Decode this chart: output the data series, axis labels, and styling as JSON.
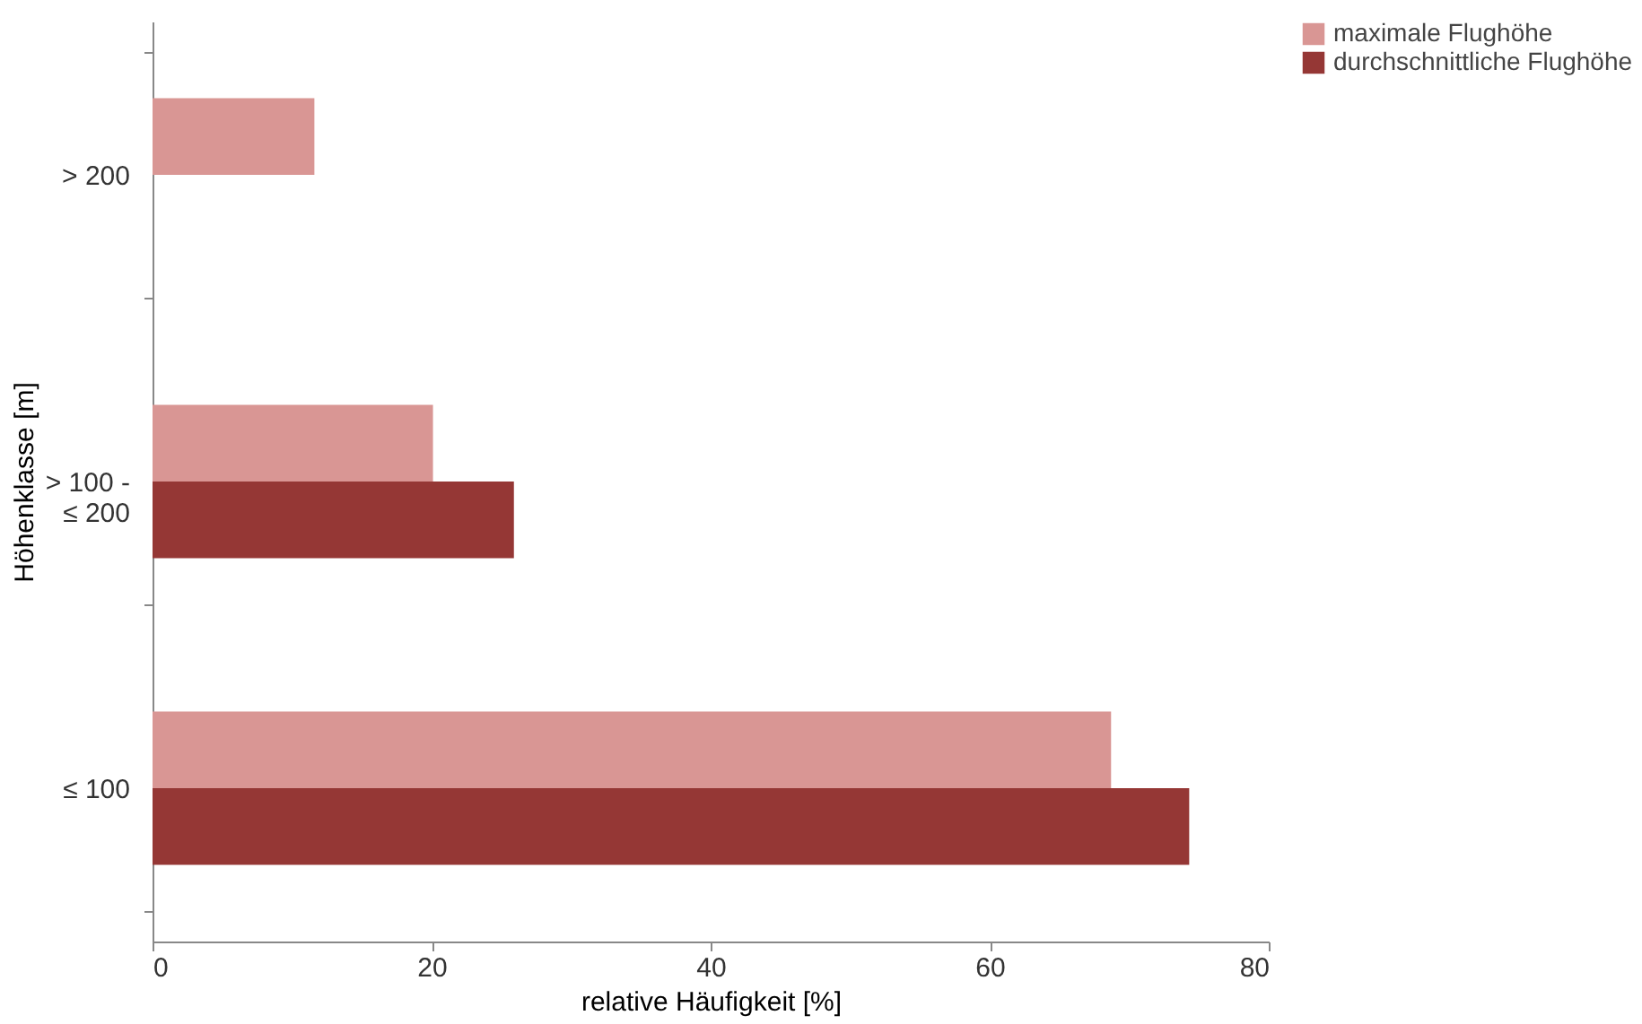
{
  "chart_data": {
    "type": "bar",
    "orientation": "horizontal",
    "xlabel": "relative Häufigkeit [%]",
    "ylabel": "Höhenklasse [m]",
    "categories": [
      "> 200",
      "> 100 -\n≤ 200",
      "≤ 100"
    ],
    "series": [
      {
        "name": "maximale Flughöhe",
        "color": "#d99694",
        "values": [
          11.6,
          20.1,
          68.7
        ]
      },
      {
        "name": "durchschnittliche Flughöhe",
        "color": "#953735",
        "values": [
          null,
          25.9,
          74.3
        ]
      }
    ],
    "xlim": [
      0,
      80
    ],
    "xticks": [
      0,
      20,
      40,
      60,
      80
    ],
    "grid": false,
    "legend": "right"
  }
}
